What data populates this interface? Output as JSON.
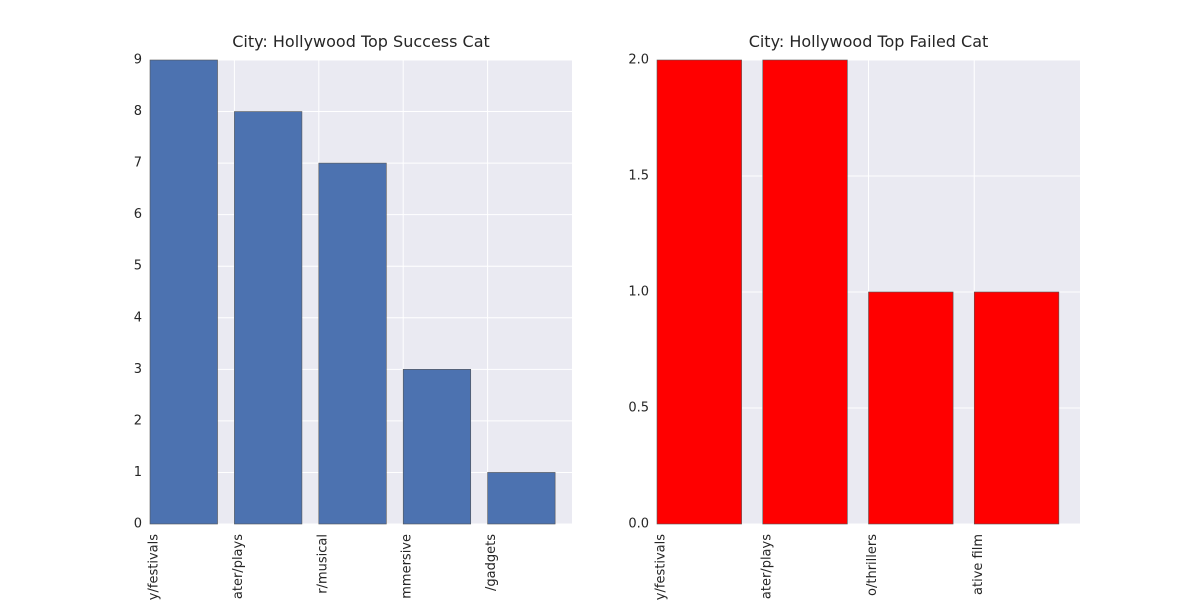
{
  "chart_data": [
    {
      "type": "bar",
      "title": "City: Hollywood Top Success Cat",
      "categories": [
        "y/festivals",
        "ater/plays",
        "r/musical",
        "mmersive",
        "/gadgets"
      ],
      "values": [
        9,
        8,
        7,
        3,
        1
      ],
      "color": "#4c72b0",
      "ylim": [
        0,
        9
      ],
      "yticks": [
        0,
        1,
        2,
        3,
        4,
        5,
        6,
        7,
        8,
        9
      ],
      "grid": true
    },
    {
      "type": "bar",
      "title": "City: Hollywood Top Failed Cat",
      "categories": [
        "y/festivals",
        "ater/plays",
        "o/thrillers",
        "ative film"
      ],
      "values": [
        2,
        2,
        1,
        1
      ],
      "color": "#ff0000",
      "ylim": [
        0,
        2
      ],
      "yticks": [
        {
          "value": 0,
          "label": "0.0"
        },
        {
          "value": 0.5,
          "label": "0.5"
        },
        {
          "value": 1,
          "label": "1.0"
        },
        {
          "value": 1.5,
          "label": "1.5"
        },
        {
          "value": 2,
          "label": "2.0"
        }
      ],
      "grid": true
    }
  ]
}
